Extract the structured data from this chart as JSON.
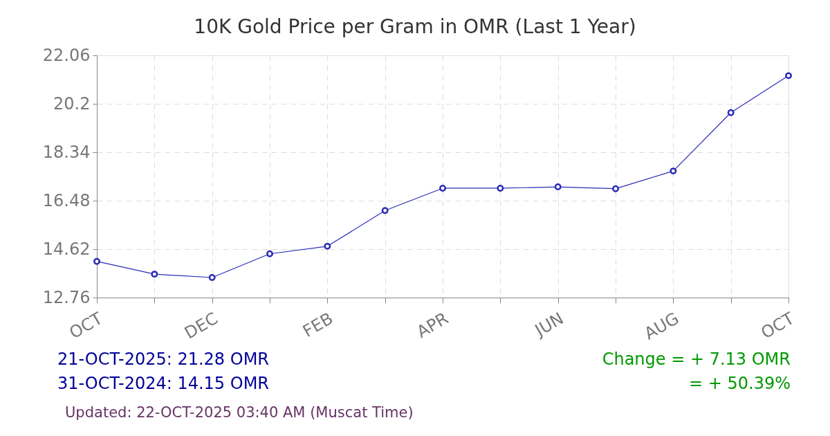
{
  "chart_data": {
    "type": "line",
    "title": "10K Gold Price per Gram in OMR (Last 1 Year)",
    "categories": [
      "OCT",
      null,
      "DEC",
      null,
      "FEB",
      null,
      "APR",
      null,
      "JUN",
      null,
      "AUG",
      null,
      "OCT"
    ],
    "series": [
      {
        "color": "#2b2bb8",
        "values": [
          14.15,
          13.66,
          13.53,
          14.44,
          14.73,
          16.1,
          16.96,
          16.96,
          17.01,
          16.94,
          17.62,
          19.86,
          21.28
        ]
      }
    ],
    "ylim": [
      12.76,
      22.06
    ],
    "yticks": [
      12.76,
      14.62,
      16.48,
      18.34,
      20.2,
      22.06
    ],
    "grid": true,
    "marker": "circle",
    "line_style": "solid",
    "annotations": [
      "21-OCT-2025: 21.28 OMR",
      "31-OCT-2024: 14.15 OMR",
      "Change = + 7.13 OMR",
      "= + 50.39%",
      "Updated: 22-OCT-2025 03:40 AM (Muscat Time)"
    ]
  }
}
